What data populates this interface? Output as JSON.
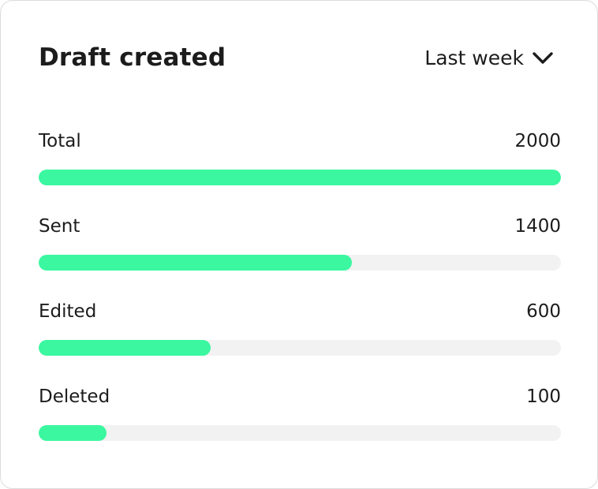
{
  "card": {
    "title": "Draft created",
    "period": {
      "selected": "Last week",
      "icon": "chevron-down-icon"
    },
    "accent_color": "#3af7a0",
    "track_color": "#f2f2f2",
    "rows": [
      {
        "label": "Total",
        "value": "2000",
        "progress": 1.0
      },
      {
        "label": "Sent",
        "value": "1400",
        "progress": 0.6
      },
      {
        "label": "Edited",
        "value": "600",
        "progress": 0.33
      },
      {
        "label": "Deleted",
        "value": "100",
        "progress": 0.13
      }
    ]
  }
}
